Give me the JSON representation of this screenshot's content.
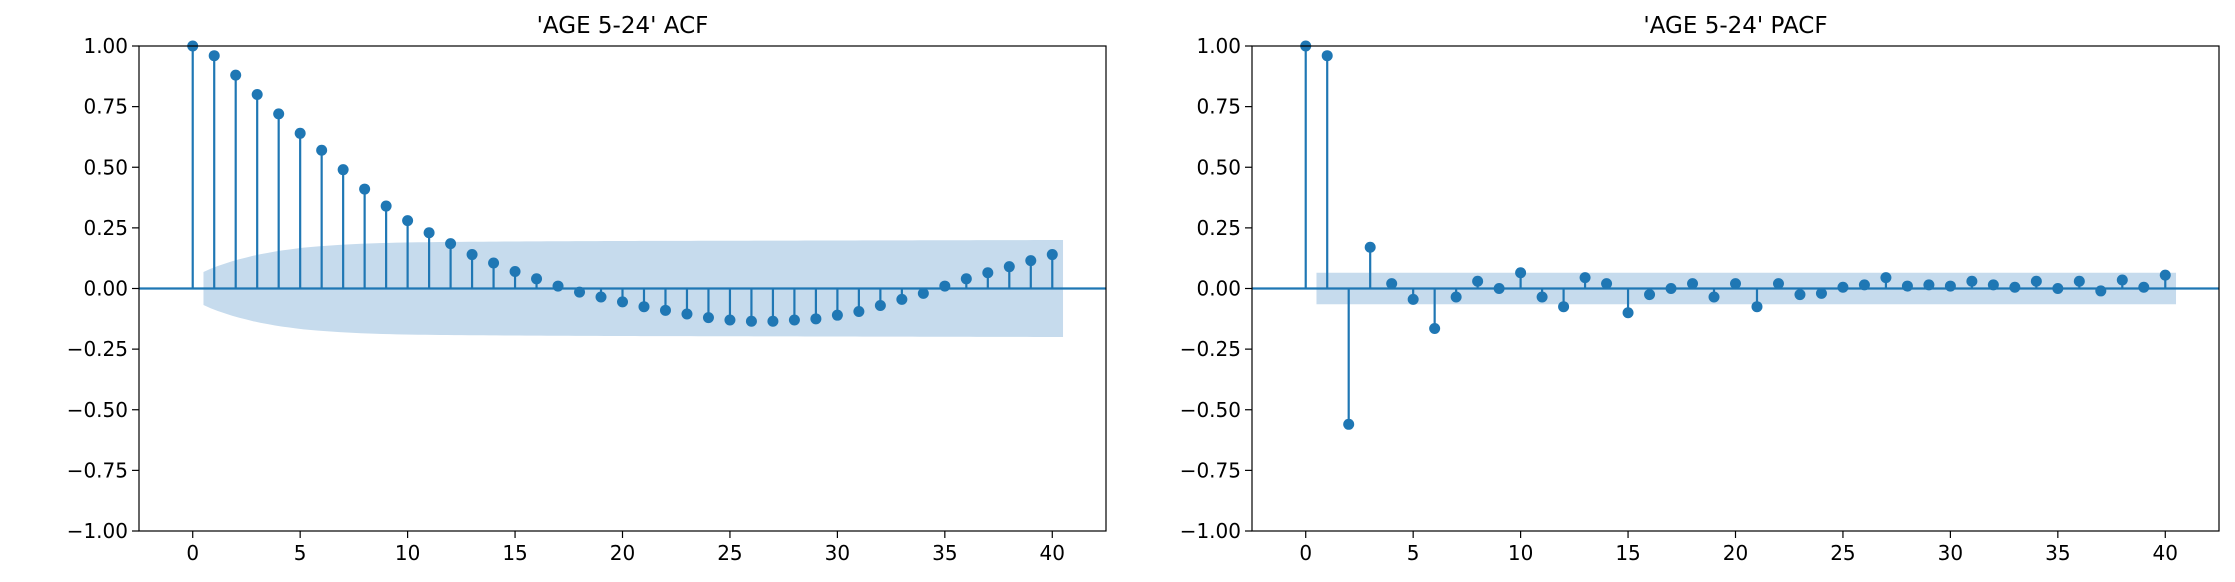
{
  "chart_data": [
    {
      "type": "stem",
      "title": "'AGE 5-24' ACF",
      "xlabel": "",
      "ylabel": "",
      "xlim": [
        -2.5,
        42.5
      ],
      "ylim": [
        -1.0,
        1.0
      ],
      "xticks": [
        0,
        5,
        10,
        15,
        20,
        25,
        30,
        35,
        40
      ],
      "yticks": [
        -1.0,
        -0.75,
        -0.5,
        -0.25,
        0.0,
        0.25,
        0.5,
        0.75,
        1.0
      ],
      "xtick_labels": [
        "0",
        "5",
        "10",
        "15",
        "20",
        "25",
        "30",
        "35",
        "40"
      ],
      "ytick_labels": [
        "−1.00",
        "−0.75",
        "−0.50",
        "−0.25",
        "0.00",
        "0.25",
        "0.50",
        "0.75",
        "1.00"
      ],
      "grid": false,
      "color": "#1f77b4",
      "band_color": "#c6dbed",
      "x": [
        0,
        1,
        2,
        3,
        4,
        5,
        6,
        7,
        8,
        9,
        10,
        11,
        12,
        13,
        14,
        15,
        16,
        17,
        18,
        19,
        20,
        21,
        22,
        23,
        24,
        25,
        26,
        27,
        28,
        29,
        30,
        31,
        32,
        33,
        34,
        35,
        36,
        37,
        38,
        39,
        40
      ],
      "values": [
        1.0,
        0.96,
        0.88,
        0.8,
        0.72,
        0.64,
        0.57,
        0.49,
        0.41,
        0.34,
        0.28,
        0.23,
        0.185,
        0.14,
        0.105,
        0.07,
        0.04,
        0.01,
        -0.015,
        -0.035,
        -0.055,
        -0.075,
        -0.09,
        -0.105,
        -0.12,
        -0.13,
        -0.135,
        -0.135,
        -0.13,
        -0.125,
        -0.11,
        -0.095,
        -0.07,
        -0.045,
        -0.02,
        0.01,
        0.04,
        0.065,
        0.09,
        0.115,
        0.14
      ],
      "confidence_band": {
        "x_start": 0.5,
        "x_end": 40.5,
        "x": [
          0.5,
          1,
          2,
          3,
          4,
          5,
          6,
          7,
          8,
          9,
          10,
          12,
          15,
          20,
          30,
          40.5
        ],
        "half_width": [
          0.068,
          0.088,
          0.117,
          0.139,
          0.155,
          0.167,
          0.175,
          0.181,
          0.185,
          0.188,
          0.19,
          0.192,
          0.194,
          0.196,
          0.198,
          0.2
        ]
      }
    },
    {
      "type": "stem",
      "title": "'AGE 5-24' PACF",
      "xlabel": "",
      "ylabel": "",
      "xlim": [
        -2.5,
        42.5
      ],
      "ylim": [
        -1.0,
        1.0
      ],
      "xticks": [
        0,
        5,
        10,
        15,
        20,
        25,
        30,
        35,
        40
      ],
      "yticks": [
        -1.0,
        -0.75,
        -0.5,
        -0.25,
        0.0,
        0.25,
        0.5,
        0.75,
        1.0
      ],
      "xtick_labels": [
        "0",
        "5",
        "10",
        "15",
        "20",
        "25",
        "30",
        "35",
        "40"
      ],
      "ytick_labels": [
        "−1.00",
        "−0.75",
        "−0.50",
        "−0.25",
        "0.00",
        "0.25",
        "0.50",
        "0.75",
        "1.00"
      ],
      "grid": false,
      "color": "#1f77b4",
      "band_color": "#c6dbed",
      "x": [
        0,
        1,
        2,
        3,
        4,
        5,
        6,
        7,
        8,
        9,
        10,
        11,
        12,
        13,
        14,
        15,
        16,
        17,
        18,
        19,
        20,
        21,
        22,
        23,
        24,
        25,
        26,
        27,
        28,
        29,
        30,
        31,
        32,
        33,
        34,
        35,
        36,
        37,
        38,
        39,
        40
      ],
      "values": [
        1.0,
        0.96,
        -0.56,
        0.17,
        0.02,
        -0.045,
        -0.165,
        -0.035,
        0.03,
        0.0,
        0.065,
        -0.035,
        -0.075,
        0.045,
        0.02,
        -0.1,
        -0.025,
        0.0,
        0.02,
        -0.035,
        0.02,
        -0.075,
        0.02,
        -0.025,
        -0.02,
        0.005,
        0.015,
        0.045,
        0.01,
        0.015,
        0.01,
        0.03,
        0.015,
        0.005,
        0.03,
        0.0,
        0.03,
        -0.01,
        0.035,
        0.005,
        0.055
      ],
      "confidence_band": {
        "x_start": 0.5,
        "x_end": 40.5,
        "x": [
          0.5,
          40.5
        ],
        "half_width": [
          0.065,
          0.065
        ]
      }
    }
  ]
}
